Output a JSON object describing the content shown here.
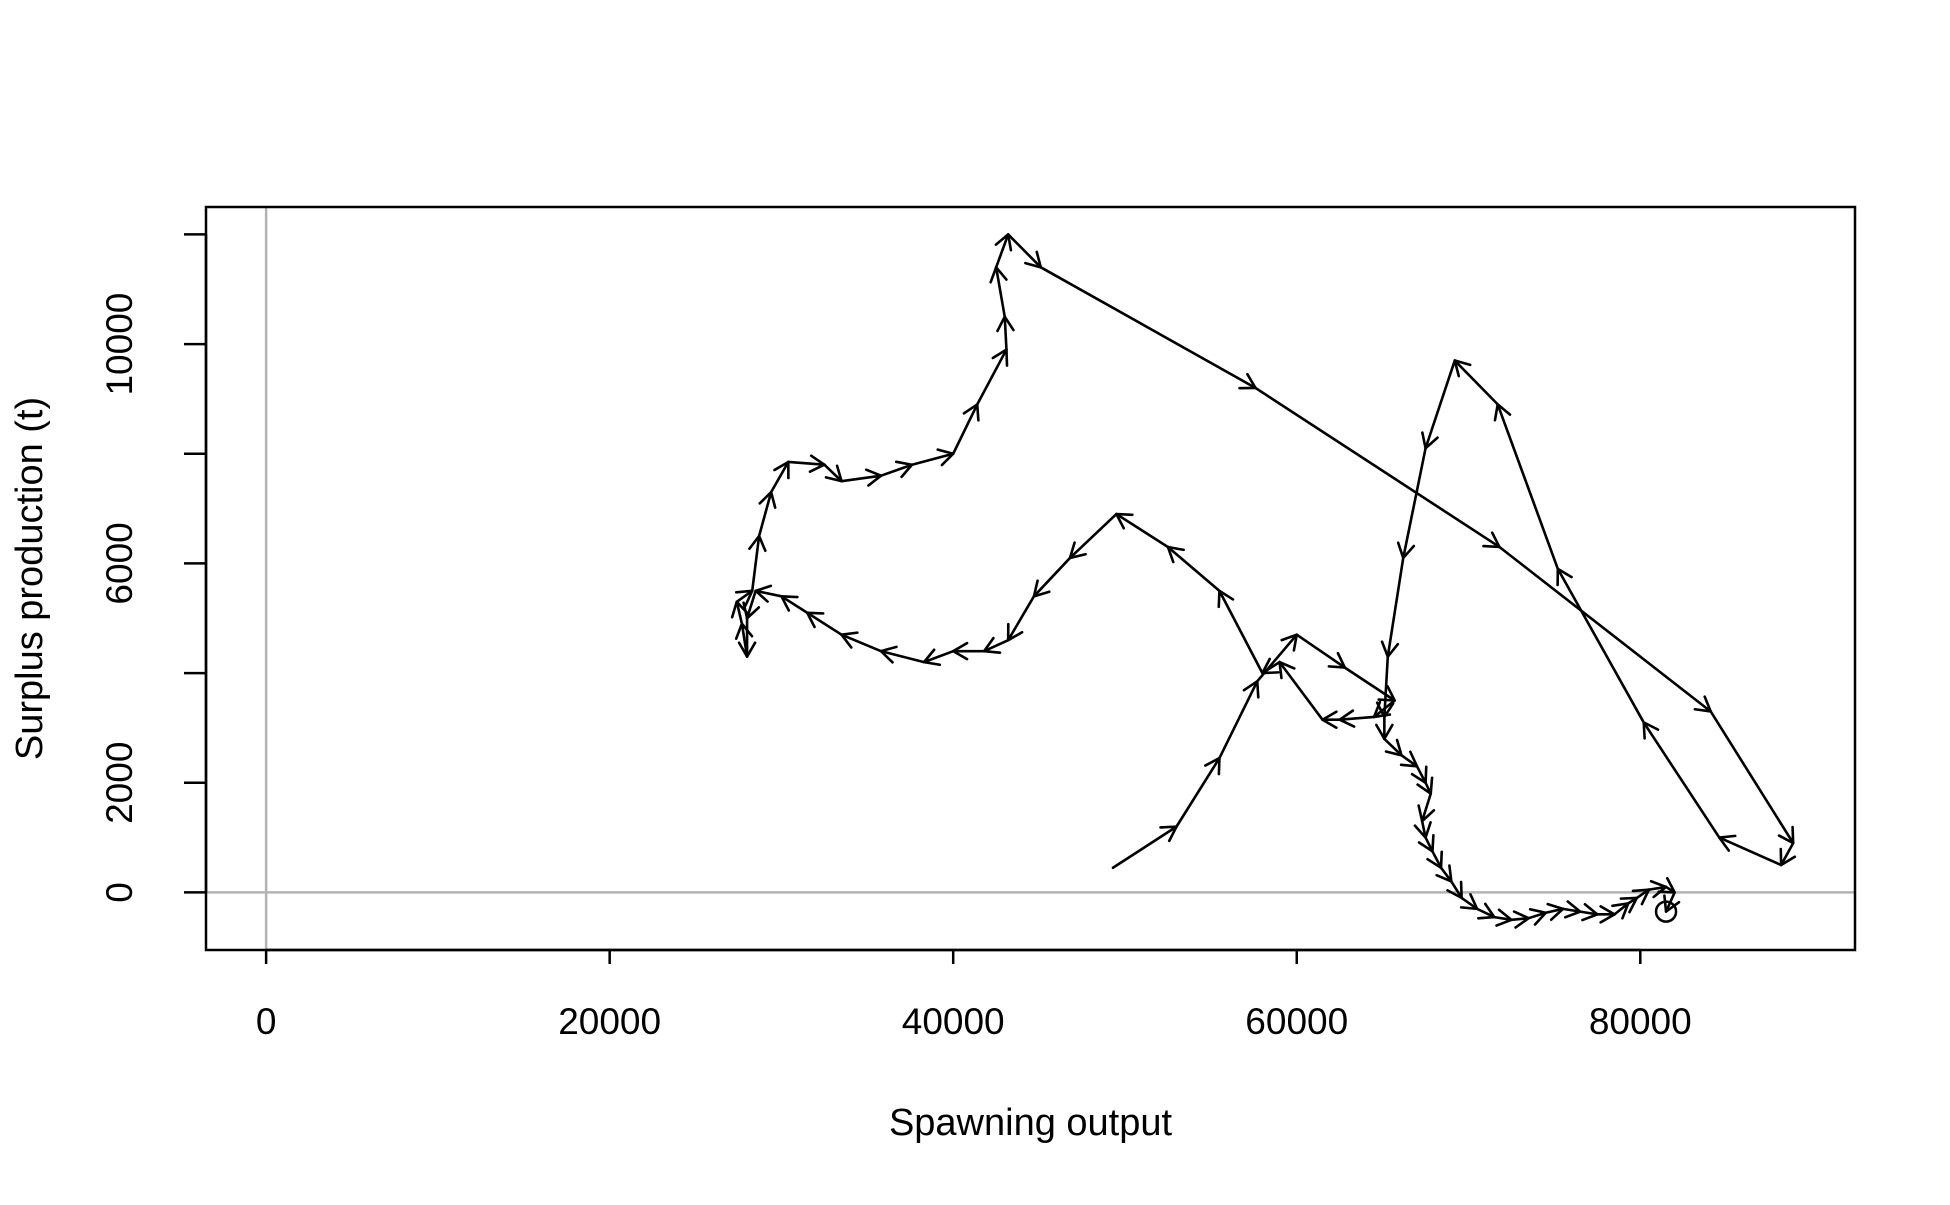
{
  "chart_data": {
    "type": "line",
    "title": "",
    "xlabel": "Spawning output",
    "ylabel": "Surplus production (t)",
    "xlim": [
      -3500,
      92500
    ],
    "ylim": [
      -1050,
      12500
    ],
    "x_ticks": [
      0,
      20000,
      40000,
      60000,
      80000
    ],
    "x_tick_labels": [
      "0",
      "20000",
      "40000",
      "60000",
      "80000"
    ],
    "y_ticks": [
      0,
      2000,
      6000,
      10000
    ],
    "y_tick_labels": [
      "0",
      "2000",
      "6000",
      "10000"
    ],
    "y_minor_ticks": [
      0,
      2000,
      4000,
      6000,
      8000,
      10000,
      12000
    ],
    "reference_lines": {
      "x": 0,
      "y": 0,
      "color": "#b3b3b3"
    },
    "line_color": "#000000",
    "series": [
      {
        "marker_at_end": "open-circle",
        "points": [
          [
            49300,
            450
          ],
          [
            53000,
            1200
          ],
          [
            55500,
            2450
          ],
          [
            57700,
            3850
          ],
          [
            60000,
            4700
          ],
          [
            62800,
            4100
          ],
          [
            65700,
            3500
          ],
          [
            64500,
            3200
          ],
          [
            62500,
            3150
          ],
          [
            61500,
            3150
          ],
          [
            59000,
            4200
          ],
          [
            58000,
            4000
          ],
          [
            55500,
            5500
          ],
          [
            52500,
            6300
          ],
          [
            49500,
            6900
          ],
          [
            46800,
            6100
          ],
          [
            44700,
            5400
          ],
          [
            43200,
            4600
          ],
          [
            41800,
            4400
          ],
          [
            40000,
            4400
          ],
          [
            38300,
            4200
          ],
          [
            35800,
            4400
          ],
          [
            33500,
            4700
          ],
          [
            31500,
            5100
          ],
          [
            30000,
            5400
          ],
          [
            28500,
            5500
          ],
          [
            28000,
            5000
          ],
          [
            28000,
            4300
          ],
          [
            27700,
            4900
          ],
          [
            27400,
            5300
          ],
          [
            28300,
            5500
          ],
          [
            28700,
            6500
          ],
          [
            29400,
            7300
          ],
          [
            30400,
            7850
          ],
          [
            32500,
            7800
          ],
          [
            33500,
            7500
          ],
          [
            35800,
            7600
          ],
          [
            37600,
            7800
          ],
          [
            40000,
            8000
          ],
          [
            41400,
            8900
          ],
          [
            43100,
            9900
          ],
          [
            43000,
            10500
          ],
          [
            42500,
            11400
          ],
          [
            43200,
            12000
          ],
          [
            45100,
            11400
          ],
          [
            57600,
            9200
          ],
          [
            71800,
            6300
          ],
          [
            84100,
            3300
          ],
          [
            88900,
            900
          ],
          [
            88200,
            500
          ],
          [
            84600,
            1000
          ],
          [
            80200,
            3100
          ],
          [
            75200,
            5900
          ],
          [
            71700,
            8900
          ],
          [
            69200,
            9700
          ],
          [
            67500,
            8100
          ],
          [
            66200,
            6100
          ],
          [
            65300,
            4300
          ],
          [
            65100,
            3200
          ],
          [
            65100,
            2800
          ],
          [
            66100,
            2500
          ],
          [
            67000,
            2300
          ],
          [
            67500,
            2000
          ],
          [
            67800,
            1800
          ],
          [
            67300,
            1300
          ],
          [
            67500,
            1000
          ],
          [
            67900,
            750
          ],
          [
            68400,
            450
          ],
          [
            69000,
            200
          ],
          [
            69600,
            -100
          ],
          [
            70500,
            -300
          ],
          [
            71500,
            -450
          ],
          [
            72500,
            -500
          ],
          [
            73500,
            -470
          ],
          [
            74500,
            -370
          ],
          [
            75500,
            -300
          ],
          [
            76500,
            -350
          ],
          [
            77500,
            -400
          ],
          [
            78500,
            -400
          ],
          [
            79300,
            -200
          ],
          [
            79800,
            -100
          ],
          [
            80500,
            50
          ],
          [
            81500,
            100
          ],
          [
            82000,
            0
          ],
          [
            81500,
            -350
          ]
        ]
      }
    ]
  }
}
